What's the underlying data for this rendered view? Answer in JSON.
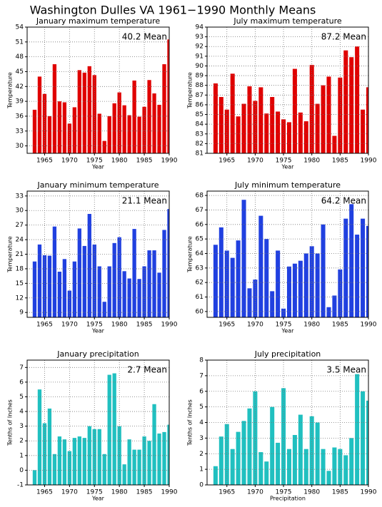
{
  "title": "Washington Dulles VA  1961−1990 Monthly Means",
  "chart_data": [
    {
      "type": "bar",
      "title": "January maximum temperature",
      "xlabel": "Year",
      "ylabel": "Temperature",
      "annotation": "40.2 Mean",
      "color": "#e00000",
      "x": [
        1963,
        1964,
        1965,
        1966,
        1967,
        1968,
        1969,
        1970,
        1971,
        1972,
        1973,
        1974,
        1975,
        1976,
        1977,
        1978,
        1979,
        1980,
        1981,
        1982,
        1983,
        1984,
        1985,
        1986,
        1987,
        1988,
        1989,
        1990
      ],
      "values": [
        37.3,
        44,
        40.5,
        36,
        46.5,
        39,
        38.8,
        34.5,
        37.8,
        45.3,
        44.8,
        46.1,
        44.3,
        36.5,
        31,
        36,
        38.6,
        40.8,
        38.2,
        36.2,
        43.2,
        35.9,
        37.9,
        43.3,
        40.6,
        38.3,
        46.5,
        51.5
      ],
      "xlim": [
        1961.5,
        1990
      ],
      "ylim": [
        28.5,
        54
      ],
      "xticks": [
        1965,
        1970,
        1975,
        1980,
        1985,
        1990
      ],
      "yticks": [
        30,
        33,
        36,
        39,
        42,
        45,
        48,
        51,
        54
      ],
      "grid": true
    },
    {
      "type": "bar",
      "title": "July maximum temperature",
      "xlabel": "Year",
      "ylabel": "Temperature",
      "annotation": "87.2 Mean",
      "color": "#e00000",
      "x": [
        1963,
        1964,
        1965,
        1966,
        1967,
        1968,
        1969,
        1970,
        1971,
        1972,
        1973,
        1974,
        1975,
        1976,
        1977,
        1978,
        1979,
        1980,
        1981,
        1982,
        1983,
        1984,
        1985,
        1986,
        1987,
        1988,
        1989,
        1990
      ],
      "values": [
        88.2,
        86.8,
        85.5,
        89.2,
        84.8,
        86.1,
        87.9,
        86.4,
        87.8,
        85.1,
        86.8,
        85.3,
        84.5,
        84.2,
        89.7,
        85.2,
        84.3,
        90.1,
        86.1,
        88.0,
        88.9,
        82.8,
        88.8,
        91.6,
        90.9,
        92.0,
        85.5,
        87.8
      ],
      "xlim": [
        1961.5,
        1990
      ],
      "ylim": [
        81,
        94
      ],
      "xticks": [
        1965,
        1970,
        1975,
        1980,
        1985,
        1990
      ],
      "yticks": [
        81,
        82,
        83,
        84,
        85,
        86,
        87,
        88,
        89,
        90,
        91,
        92,
        93,
        94
      ],
      "grid": true
    },
    {
      "type": "bar",
      "title": "January minimum temperature",
      "xlabel": "Year",
      "ylabel": "Temperature",
      "annotation": "21.1 Mean",
      "color": "#2040e0",
      "x": [
        1963,
        1964,
        1965,
        1966,
        1967,
        1968,
        1969,
        1970,
        1971,
        1972,
        1973,
        1974,
        1975,
        1976,
        1977,
        1978,
        1979,
        1980,
        1981,
        1982,
        1983,
        1984,
        1985,
        1986,
        1987,
        1988,
        1989,
        1990
      ],
      "values": [
        19.5,
        23,
        20.8,
        20.7,
        26.7,
        17.4,
        20,
        13.5,
        19.5,
        26.3,
        22.7,
        29.3,
        23,
        18.5,
        11.2,
        18.5,
        23.3,
        24.5,
        17.5,
        16,
        26.2,
        15.9,
        18.5,
        21.8,
        21.8,
        17.2,
        26,
        30.3
      ],
      "xlim": [
        1961.5,
        1990
      ],
      "ylim": [
        8,
        34
      ],
      "xticks": [
        1965,
        1970,
        1975,
        1980,
        1985,
        1990
      ],
      "yticks": [
        9,
        12,
        15,
        18,
        21,
        24,
        27,
        30,
        33
      ],
      "grid": true
    },
    {
      "type": "bar",
      "title": "July minimum temperature",
      "xlabel": "Year",
      "ylabel": "Temperature",
      "annotation": "64.2 Mean",
      "color": "#2040e0",
      "x": [
        1963,
        1964,
        1965,
        1966,
        1967,
        1968,
        1969,
        1970,
        1971,
        1972,
        1973,
        1974,
        1975,
        1976,
        1977,
        1978,
        1979,
        1980,
        1981,
        1982,
        1983,
        1984,
        1985,
        1986,
        1987,
        1988,
        1989,
        1990
      ],
      "values": [
        64.6,
        65.8,
        64.2,
        63.7,
        64.9,
        67.7,
        61.6,
        62.2,
        66.6,
        65,
        61.4,
        64.2,
        60.2,
        63.1,
        63.3,
        63.5,
        64,
        64.5,
        64,
        66,
        60.3,
        61.1,
        62.9,
        66.4,
        67.4,
        65.3,
        66.4,
        65.9
      ],
      "xlim": [
        1961.5,
        1990
      ],
      "ylim": [
        59.6,
        68.3
      ],
      "xticks": [
        1965,
        1970,
        1975,
        1980,
        1985,
        1990
      ],
      "yticks": [
        60,
        61,
        62,
        63,
        64,
        65,
        66,
        67,
        68
      ],
      "grid": true
    },
    {
      "type": "bar",
      "title": "January precipitation",
      "xlabel": "Year",
      "ylabel": "Tenths of Inches",
      "annotation": "2.7 Mean",
      "color": "#20c0c0",
      "x": [
        1963,
        1964,
        1965,
        1966,
        1967,
        1968,
        1969,
        1970,
        1971,
        1972,
        1973,
        1974,
        1975,
        1976,
        1977,
        1978,
        1979,
        1980,
        1981,
        1982,
        1983,
        1984,
        1985,
        1986,
        1987,
        1988,
        1989,
        1990
      ],
      "values": [
        0,
        5.5,
        3.2,
        4.2,
        1.1,
        2.3,
        2.1,
        1.3,
        2.2,
        2.3,
        2.2,
        3,
        2.8,
        2.8,
        1.1,
        6.5,
        6.6,
        3,
        0.4,
        2.1,
        1.4,
        1.4,
        2.3,
        2,
        4.5,
        2.5,
        2.6,
        3.1
      ],
      "xlim": [
        1961.5,
        1990
      ],
      "ylim": [
        -1,
        7.5
      ],
      "xticks": [
        1965,
        1970,
        1975,
        1980,
        1985,
        1990
      ],
      "yticks": [
        -1,
        0,
        1,
        2,
        3,
        4,
        5,
        6,
        7
      ],
      "grid": true
    },
    {
      "type": "bar",
      "title": "July precipitation",
      "xlabel": "Precipitation",
      "ylabel": "Tenths of Inches",
      "annotation": "3.5 Mean",
      "color": "#20c0c0",
      "x": [
        1963,
        1964,
        1965,
        1966,
        1967,
        1968,
        1969,
        1970,
        1971,
        1972,
        1973,
        1974,
        1975,
        1976,
        1977,
        1978,
        1979,
        1980,
        1981,
        1982,
        1983,
        1984,
        1985,
        1986,
        1987,
        1988,
        1989,
        1990
      ],
      "values": [
        1.2,
        3.1,
        3.9,
        2.3,
        3.4,
        4.1,
        4.9,
        6,
        2.1,
        1.5,
        5,
        2.7,
        6.2,
        2.3,
        3.2,
        4.5,
        2.3,
        4.4,
        4,
        2.3,
        0.9,
        2.4,
        2.3,
        1.9,
        3,
        7.1,
        6,
        5.4
      ],
      "xlim": [
        1961.5,
        1990
      ],
      "ylim": [
        0,
        8
      ],
      "xticks": [
        1965,
        1970,
        1975,
        1980,
        1985,
        1990
      ],
      "yticks": [
        0,
        1,
        2,
        3,
        4,
        5,
        6,
        7,
        8
      ],
      "grid": true
    }
  ]
}
